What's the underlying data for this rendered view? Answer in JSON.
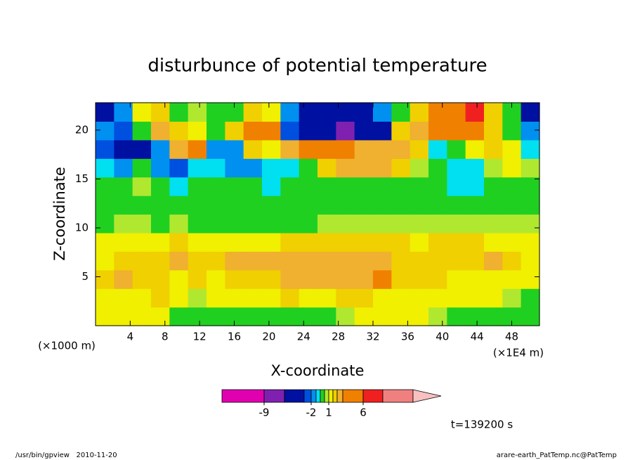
{
  "chart_data": {
    "type": "contour",
    "title": "disturbunce of potential temperature",
    "x_label": "X-coordinate",
    "y_label": "Z-coordinate",
    "x_unit_label": "(×1E4 m)",
    "y_unit_label": "(×1000 m)",
    "time_label": "t=139200 s",
    "footer_left": "/usr/bin/gpview   2010-11-20",
    "footer_right": "arare-earth_PatTemp.nc@PatTemp",
    "xlim": [
      0,
      51.2
    ],
    "ylim": [
      0,
      22.8
    ],
    "xticks": [
      4,
      8,
      12,
      16,
      20,
      24,
      28,
      32,
      36,
      40,
      44,
      48
    ],
    "yticks": [
      5,
      10,
      15,
      20
    ],
    "x": [
      1.07,
      3.2,
      5.33,
      7.47,
      9.6,
      11.73,
      13.87,
      16,
      18.13,
      20.27,
      22.4,
      24.53,
      26.67,
      28.8,
      30.93,
      33.07,
      35.2,
      37.33,
      39.47,
      41.6,
      43.73,
      45.87,
      48,
      50.13
    ],
    "y": [
      0.95,
      2.85,
      4.75,
      6.65,
      8.55,
      10.45,
      12.35,
      14.25,
      16.15,
      18.05,
      19.95,
      21.85
    ],
    "z": [
      [
        1.2,
        1.2,
        1.2,
        1.2,
        0,
        0,
        0,
        0,
        0,
        0,
        0,
        0,
        0,
        0.8,
        1.2,
        1.2,
        1.2,
        1.2,
        0.8,
        0,
        0,
        0,
        0,
        0
      ],
      [
        1.2,
        1.2,
        1.2,
        1.6,
        1.2,
        0.8,
        1.2,
        1.2,
        1.2,
        1.2,
        1.6,
        1.2,
        1.2,
        1.6,
        1.6,
        1.2,
        1.2,
        1.2,
        1.2,
        1.2,
        1.2,
        1.2,
        0.8,
        0
      ],
      [
        1.6,
        2.5,
        1.6,
        1.6,
        1.2,
        1.6,
        1.2,
        1.6,
        1.6,
        1.6,
        2.5,
        2.5,
        2.5,
        2.5,
        2.5,
        3.5,
        1.6,
        1.6,
        1.6,
        1.2,
        1.2,
        1.2,
        1.2,
        1.2
      ],
      [
        1.2,
        1.6,
        1.6,
        1.6,
        2.5,
        1.6,
        1.6,
        2.5,
        2.5,
        2.5,
        2.5,
        2.5,
        2.5,
        2.5,
        2.5,
        2.5,
        1.6,
        1.6,
        1.6,
        1.6,
        1.6,
        2.5,
        1.6,
        1.2
      ],
      [
        1.2,
        1.2,
        1.2,
        1.2,
        1.6,
        1.2,
        1.2,
        1.2,
        1.2,
        1.2,
        1.6,
        1.6,
        1.6,
        1.6,
        1.6,
        1.6,
        1.6,
        1.2,
        1.6,
        1.6,
        1.6,
        1.2,
        1.2,
        1.2
      ],
      [
        0,
        0.8,
        0.8,
        0,
        0.8,
        0,
        0,
        0,
        0,
        0,
        0,
        0,
        0.8,
        0.8,
        0.8,
        0.8,
        0.8,
        0.8,
        0.8,
        0.8,
        0.8,
        0.8,
        0.8,
        0.8
      ],
      [
        0,
        0,
        0,
        0,
        0,
        0,
        0,
        0,
        0,
        0,
        0,
        0,
        0,
        0,
        0,
        0,
        0,
        0,
        0,
        0,
        0,
        0,
        0,
        0
      ],
      [
        0,
        0,
        0.8,
        0,
        -0.8,
        0,
        0,
        0,
        0,
        -0.8,
        0,
        0,
        0,
        0,
        0,
        0,
        0,
        0,
        0,
        -0.8,
        -0.8,
        0,
        0,
        0
      ],
      [
        -0.8,
        -1.5,
        0,
        -1.5,
        -2.5,
        -0.8,
        -0.8,
        -1.5,
        -1.5,
        -0.8,
        -0.8,
        0,
        1.6,
        2.5,
        2.5,
        2.5,
        1.6,
        0.8,
        0,
        -0.8,
        -0.8,
        0.8,
        1.2,
        0.8
      ],
      [
        -2.5,
        -4,
        -4,
        -1.5,
        2.5,
        3.5,
        -1.5,
        -1.5,
        1.6,
        1.2,
        2.5,
        3.5,
        3.5,
        3.5,
        2.5,
        2.5,
        2.5,
        1.6,
        -0.8,
        0,
        1.2,
        1.6,
        1.2,
        -0.8
      ],
      [
        -1.5,
        -2.5,
        0,
        2.5,
        1.6,
        1.2,
        0,
        1.6,
        3.5,
        3.5,
        -2.5,
        -5,
        -5,
        -7,
        -5,
        -4,
        1.6,
        2.5,
        3.5,
        3.5,
        3.5,
        1.6,
        0,
        -1.5
      ],
      [
        -4,
        -1.5,
        1.2,
        1.6,
        0,
        0.8,
        0,
        0,
        1.6,
        1.2,
        -1.5,
        -5,
        -5,
        -4,
        -4,
        -1.5,
        0,
        1.6,
        3.5,
        3.5,
        7,
        1.6,
        0,
        -4
      ]
    ],
    "colorbar": {
      "levels": [
        -9,
        -6,
        -3,
        -2,
        -1,
        -0.5,
        0.5,
        1,
        1.5,
        2,
        3,
        6,
        9,
        12
      ],
      "colors": [
        "#e000b0",
        "#8020b0",
        "#0010a0",
        "#0050e0",
        "#0090f0",
        "#00e0f0",
        "#20d020",
        "#b0e830",
        "#f0f000",
        "#f0d000",
        "#f0b030",
        "#f08000",
        "#f02020",
        "#f08080",
        "#f8c0c0"
      ],
      "ticks": [
        -9,
        -2,
        1,
        6
      ]
    }
  }
}
